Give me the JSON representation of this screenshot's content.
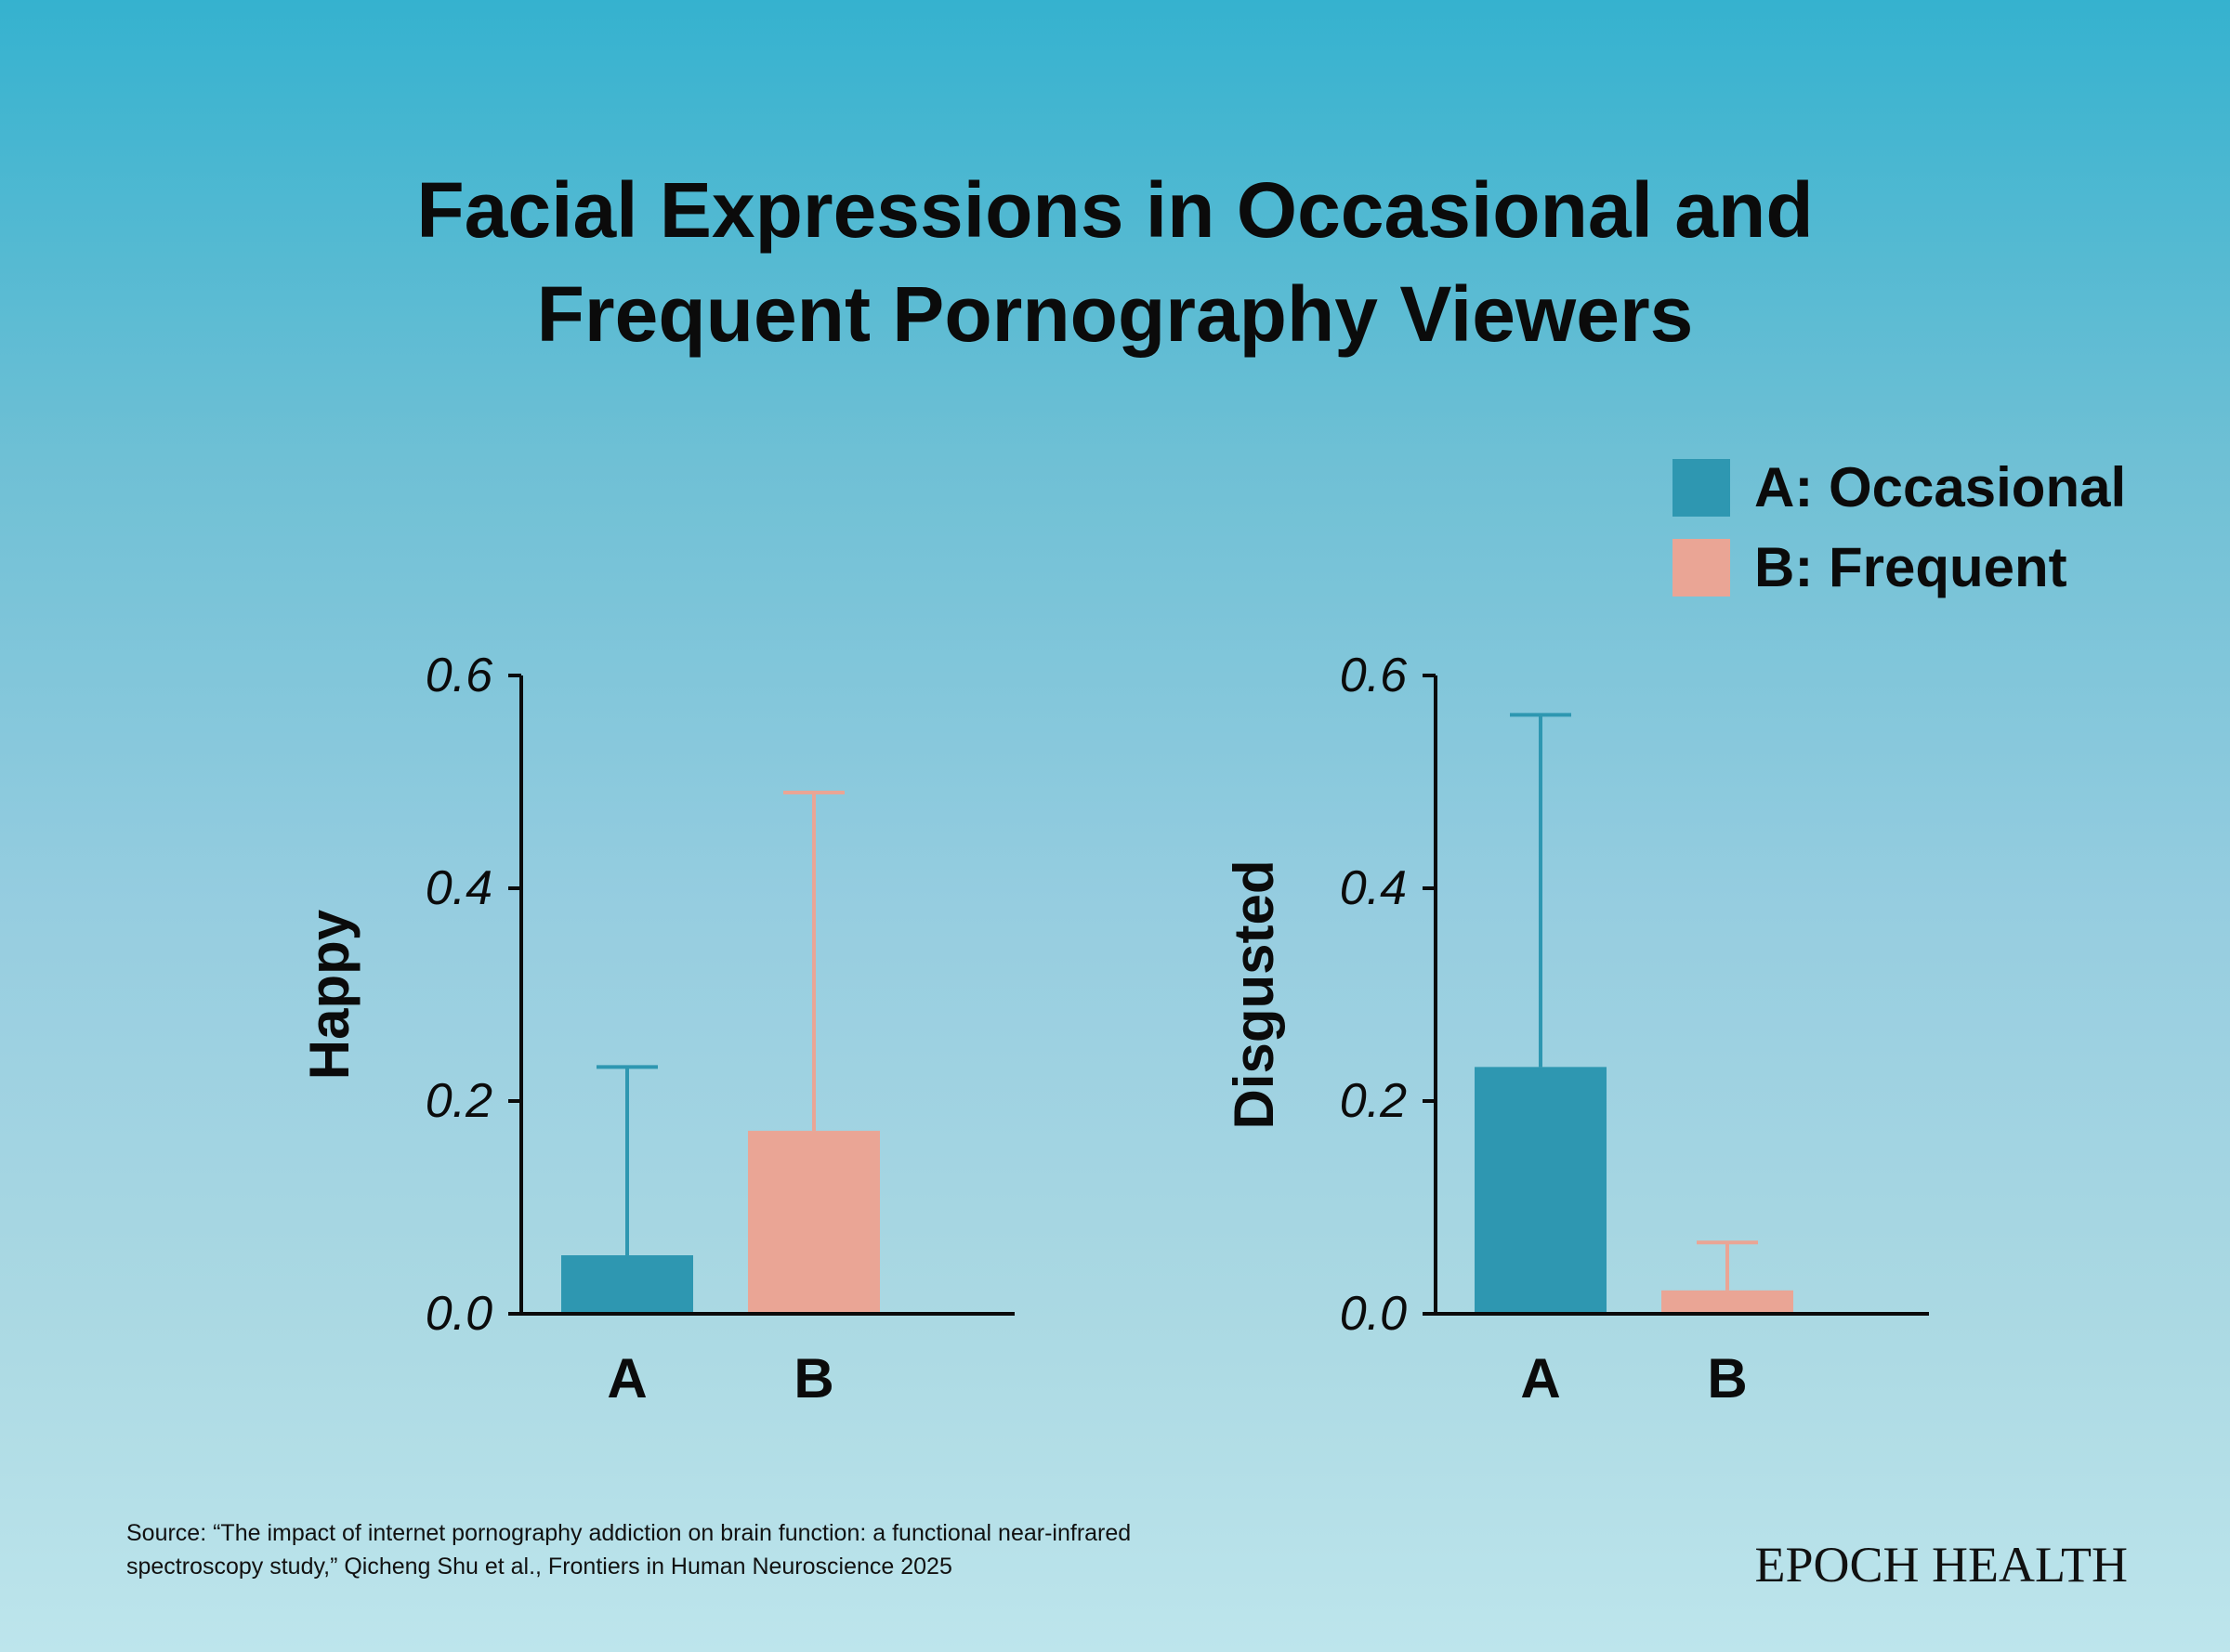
{
  "title": {
    "line1": "Facial Expressions in Occasional and",
    "line2": "Frequent Pornography Viewers"
  },
  "legend": [
    {
      "label": "A: Occasional",
      "color": "#2e97b1"
    },
    {
      "label": "B: Frequent",
      "color": "#eaa595"
    }
  ],
  "chart_data": [
    {
      "type": "bar",
      "ylabel": "Happy",
      "categories": [
        "A",
        "B"
      ],
      "values": [
        0.055,
        0.172
      ],
      "error_upper": [
        0.232,
        0.49
      ],
      "ylim": [
        0,
        0.6
      ],
      "yticks": [
        "0.0",
        "0.2",
        "0.4",
        "0.6"
      ],
      "colors": [
        "#2e97b1",
        "#eaa595"
      ]
    },
    {
      "type": "bar",
      "ylabel": "Disgusted",
      "categories": [
        "A",
        "B"
      ],
      "values": [
        0.232,
        0.022
      ],
      "error_upper": [
        0.563,
        0.067
      ],
      "ylim": [
        0,
        0.6
      ],
      "yticks": [
        "0.0",
        "0.2",
        "0.4",
        "0.6"
      ],
      "colors": [
        "#2e97b1",
        "#eaa595"
      ]
    }
  ],
  "source": {
    "line1": "Source: “The impact of internet pornography addiction on brain function: a functional near-infrared",
    "line2": "spectroscopy study,” Qicheng Shu et al., Frontiers in Human Neuroscience 2025"
  },
  "logo": "EPOCH HEALTH"
}
